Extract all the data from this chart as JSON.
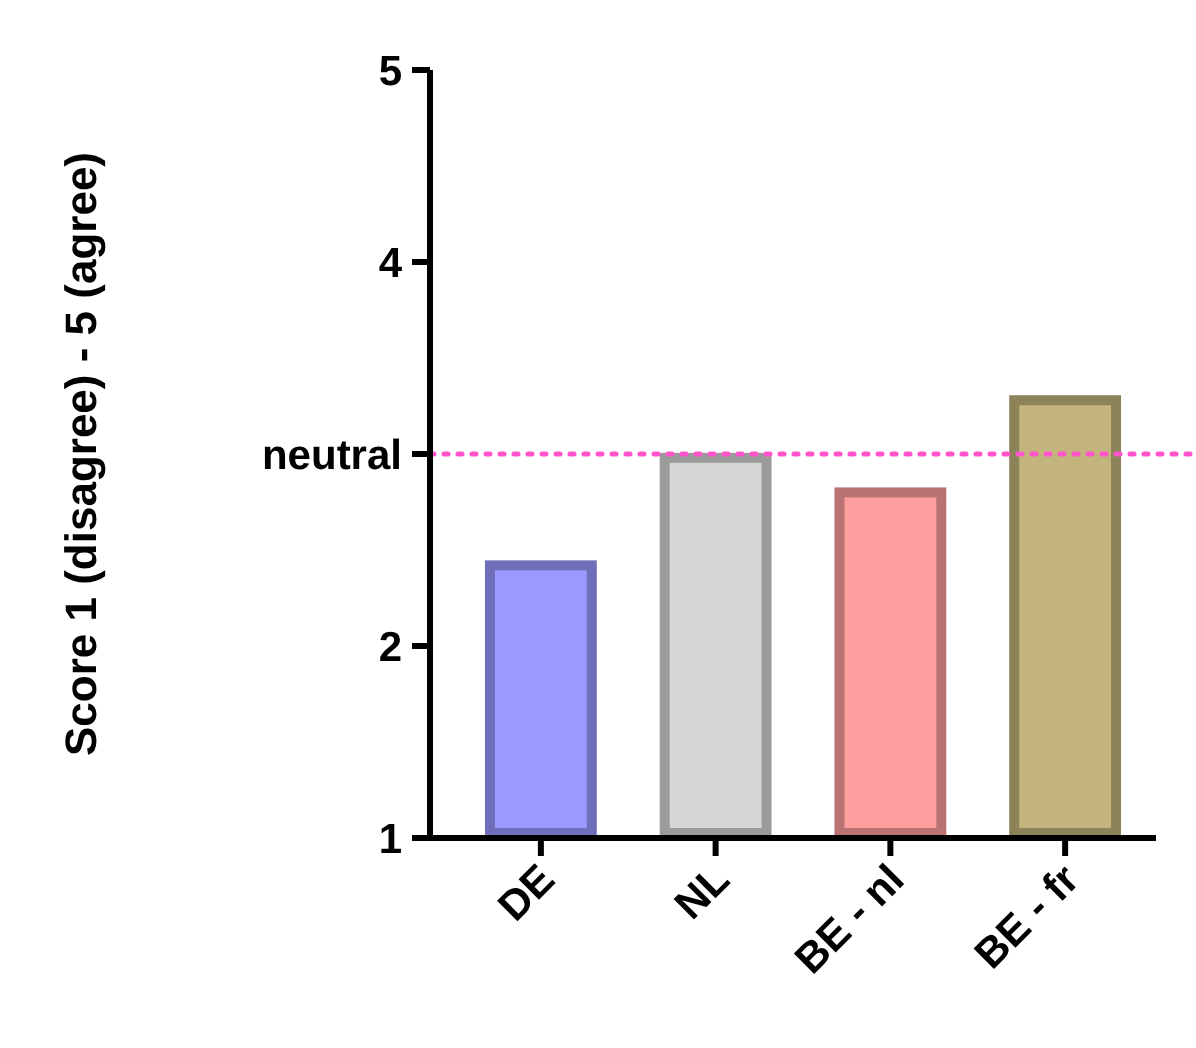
{
  "chart_data": {
    "type": "bar",
    "ylabel": "Score 1 (disagree) - 5 (agree)",
    "categories": [
      "DE",
      "NL",
      "BE - nl",
      "BE - fr"
    ],
    "values": [
      2.42,
      2.98,
      2.8,
      3.28
    ],
    "colors": [
      "#9999ff",
      "#d6d6d6",
      "#ff9e9e",
      "#c2b47c"
    ],
    "ylim": [
      1,
      5
    ],
    "yticks": [
      1,
      2,
      {
        "value": 3,
        "label": "neutral"
      },
      4,
      5
    ],
    "ref_lines": [
      {
        "axis": "y",
        "value": 3,
        "color": "#ff55cc",
        "line_style": "dotted"
      }
    ],
    "grid": false
  }
}
